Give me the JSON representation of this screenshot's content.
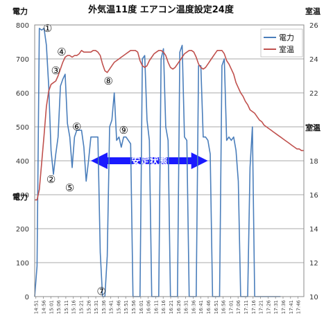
{
  "chart_data": {
    "type": "line",
    "title": "外気温11度 エアコン温度設定24度",
    "ylabel": "電力",
    "y2label": "室温",
    "ylim": [
      0,
      800
    ],
    "y2lim": [
      10,
      26
    ],
    "yticks": [
      0,
      100,
      200,
      300,
      400,
      500,
      600,
      700,
      800
    ],
    "y2ticks": [
      10,
      12,
      14,
      16,
      18,
      20,
      22,
      24,
      26
    ],
    "xlim": [
      0,
      115
    ],
    "grid": true,
    "legend_position": "top-right",
    "x_tick_labels": [
      "14:51",
      "14:56",
      "15:01",
      "15:06",
      "15:11",
      "15:16",
      "15:21",
      "15:26",
      "15:31",
      "15:36",
      "15:41",
      "15:46",
      "15:51",
      "15:56",
      "16:01",
      "16:06",
      "16:11",
      "16:16",
      "16:21",
      "16:26",
      "16:31",
      "16:36",
      "16:41",
      "16:46",
      "16:51",
      "16:56",
      "17:01",
      "17:06",
      "17:11",
      "17:16",
      "17:21",
      "17:26",
      "17:31",
      "17:36",
      "17:41",
      "17:46"
    ],
    "series": [
      {
        "name": "電力",
        "axis": "left",
        "color": "#4a7ebb",
        "x": [
          0,
          1,
          2,
          3,
          4,
          5,
          6,
          7,
          8,
          9,
          10,
          11,
          12,
          13,
          14,
          15,
          16,
          17,
          18,
          19,
          20,
          21,
          22,
          23,
          24,
          25,
          26,
          27,
          28,
          29,
          30,
          31,
          32,
          33,
          34,
          35,
          36,
          37,
          38,
          39,
          40,
          41,
          42,
          43,
          44,
          45,
          46,
          47,
          48,
          49,
          50,
          51,
          52,
          53,
          54,
          55,
          56,
          57,
          58,
          59,
          60,
          61,
          62,
          63,
          64,
          65,
          66,
          67,
          68,
          69,
          70,
          71,
          72,
          73,
          74,
          75,
          76,
          77,
          78,
          79,
          80,
          81,
          82,
          83,
          84,
          85,
          86,
          87,
          88,
          89,
          90,
          91,
          92,
          93,
          94,
          95,
          96,
          97,
          98,
          99,
          100,
          101,
          102,
          103,
          104,
          105
        ],
        "values": [
          0,
          90,
          790,
          785,
          790,
          740,
          620,
          430,
          360,
          420,
          470,
          620,
          640,
          655,
          510,
          470,
          380,
          470,
          490,
          490,
          490,
          440,
          340,
          400,
          470,
          470,
          470,
          470,
          130,
          0,
          0,
          120,
          500,
          520,
          600,
          460,
          470,
          440,
          470,
          470,
          460,
          450,
          0,
          0,
          0,
          0,
          700,
          710,
          520,
          460,
          0,
          0,
          0,
          0,
          700,
          730,
          500,
          460,
          0,
          0,
          0,
          0,
          720,
          740,
          470,
          460,
          0,
          0,
          0,
          0,
          680,
          680,
          470,
          470,
          460,
          420,
          0,
          0,
          0,
          0,
          680,
          700,
          460,
          470,
          460,
          470,
          430,
          340,
          0,
          0,
          0,
          0,
          380,
          500,
          0,
          0,
          0,
          0,
          0,
          0,
          0,
          0,
          0,
          0,
          0,
          0
        ]
      },
      {
        "name": "室温",
        "axis": "right",
        "color": "#c0504d",
        "x": [
          0,
          1,
          2,
          3,
          4,
          5,
          6,
          7,
          8,
          9,
          10,
          11,
          12,
          13,
          14,
          15,
          16,
          17,
          18,
          19,
          20,
          21,
          22,
          23,
          24,
          25,
          26,
          27,
          28,
          29,
          30,
          31,
          32,
          33,
          34,
          35,
          36,
          37,
          38,
          39,
          40,
          41,
          42,
          43,
          44,
          45,
          46,
          47,
          48,
          49,
          50,
          51,
          52,
          53,
          54,
          55,
          56,
          57,
          58,
          59,
          60,
          61,
          62,
          63,
          64,
          65,
          66,
          67,
          68,
          69,
          70,
          71,
          72,
          73,
          74,
          75,
          76,
          77,
          78,
          79,
          80,
          81,
          82,
          83,
          84,
          85,
          86,
          87,
          88,
          89,
          90,
          91,
          92,
          93,
          94,
          95,
          96,
          97,
          98,
          99,
          100,
          101,
          102,
          103,
          104,
          105,
          106,
          107,
          108,
          109,
          110,
          111,
          112,
          113,
          114,
          115
        ],
        "values": [
          15.7,
          15.7,
          16.3,
          17.9,
          19.5,
          21.2,
          22.1,
          22.5,
          22.6,
          22.7,
          23.0,
          23.4,
          23.8,
          24.1,
          24.2,
          24.2,
          24.1,
          24.2,
          24.2,
          24.3,
          24.5,
          24.4,
          24.4,
          24.4,
          24.4,
          24.5,
          24.5,
          24.4,
          24.2,
          23.7,
          23.3,
          23.2,
          23.4,
          23.6,
          23.8,
          23.9,
          24.0,
          24.1,
          24.2,
          24.3,
          24.4,
          24.5,
          24.5,
          24.5,
          24.4,
          23.9,
          23.6,
          23.5,
          23.6,
          23.9,
          24.1,
          24.3,
          24.4,
          24.5,
          24.5,
          24.4,
          24.2,
          23.8,
          23.5,
          23.4,
          23.5,
          23.7,
          23.9,
          24.1,
          24.3,
          24.4,
          24.5,
          24.5,
          24.4,
          24.1,
          23.7,
          23.5,
          23.4,
          23.5,
          23.7,
          23.9,
          24.1,
          24.3,
          24.5,
          24.5,
          24.5,
          24.3,
          23.9,
          23.7,
          23.4,
          23.1,
          22.6,
          22.3,
          22.0,
          21.8,
          21.5,
          21.3,
          21.0,
          20.9,
          20.8,
          20.6,
          20.4,
          20.3,
          20.1,
          20.0,
          19.9,
          19.8,
          19.7,
          19.6,
          19.5,
          19.4,
          19.3,
          19.2,
          19.1,
          19.0,
          18.9,
          18.8,
          18.7,
          18.7,
          18.6,
          18.6
        ]
      }
    ],
    "annotations": {
      "band_label": "安定状態",
      "band_x": [
        24,
        74
      ],
      "band_y": 400,
      "markers": [
        {
          "label": "①",
          "x": 5.5,
          "y": 790
        },
        {
          "label": "②",
          "x": 7,
          "y": 345
        },
        {
          "label": "③",
          "x": 9,
          "y": 665
        },
        {
          "label": "④",
          "x": 11.5,
          "y": 720
        },
        {
          "label": "⑤",
          "x": 15,
          "y": 320
        },
        {
          "label": "⑥",
          "x": 18,
          "y": 500
        },
        {
          "label": "⑦",
          "x": 28.5,
          "y": 15
        },
        {
          "label": "⑧",
          "x": 31.5,
          "y": 635
        },
        {
          "label": "⑨",
          "x": 38,
          "y": 490
        }
      ]
    }
  }
}
